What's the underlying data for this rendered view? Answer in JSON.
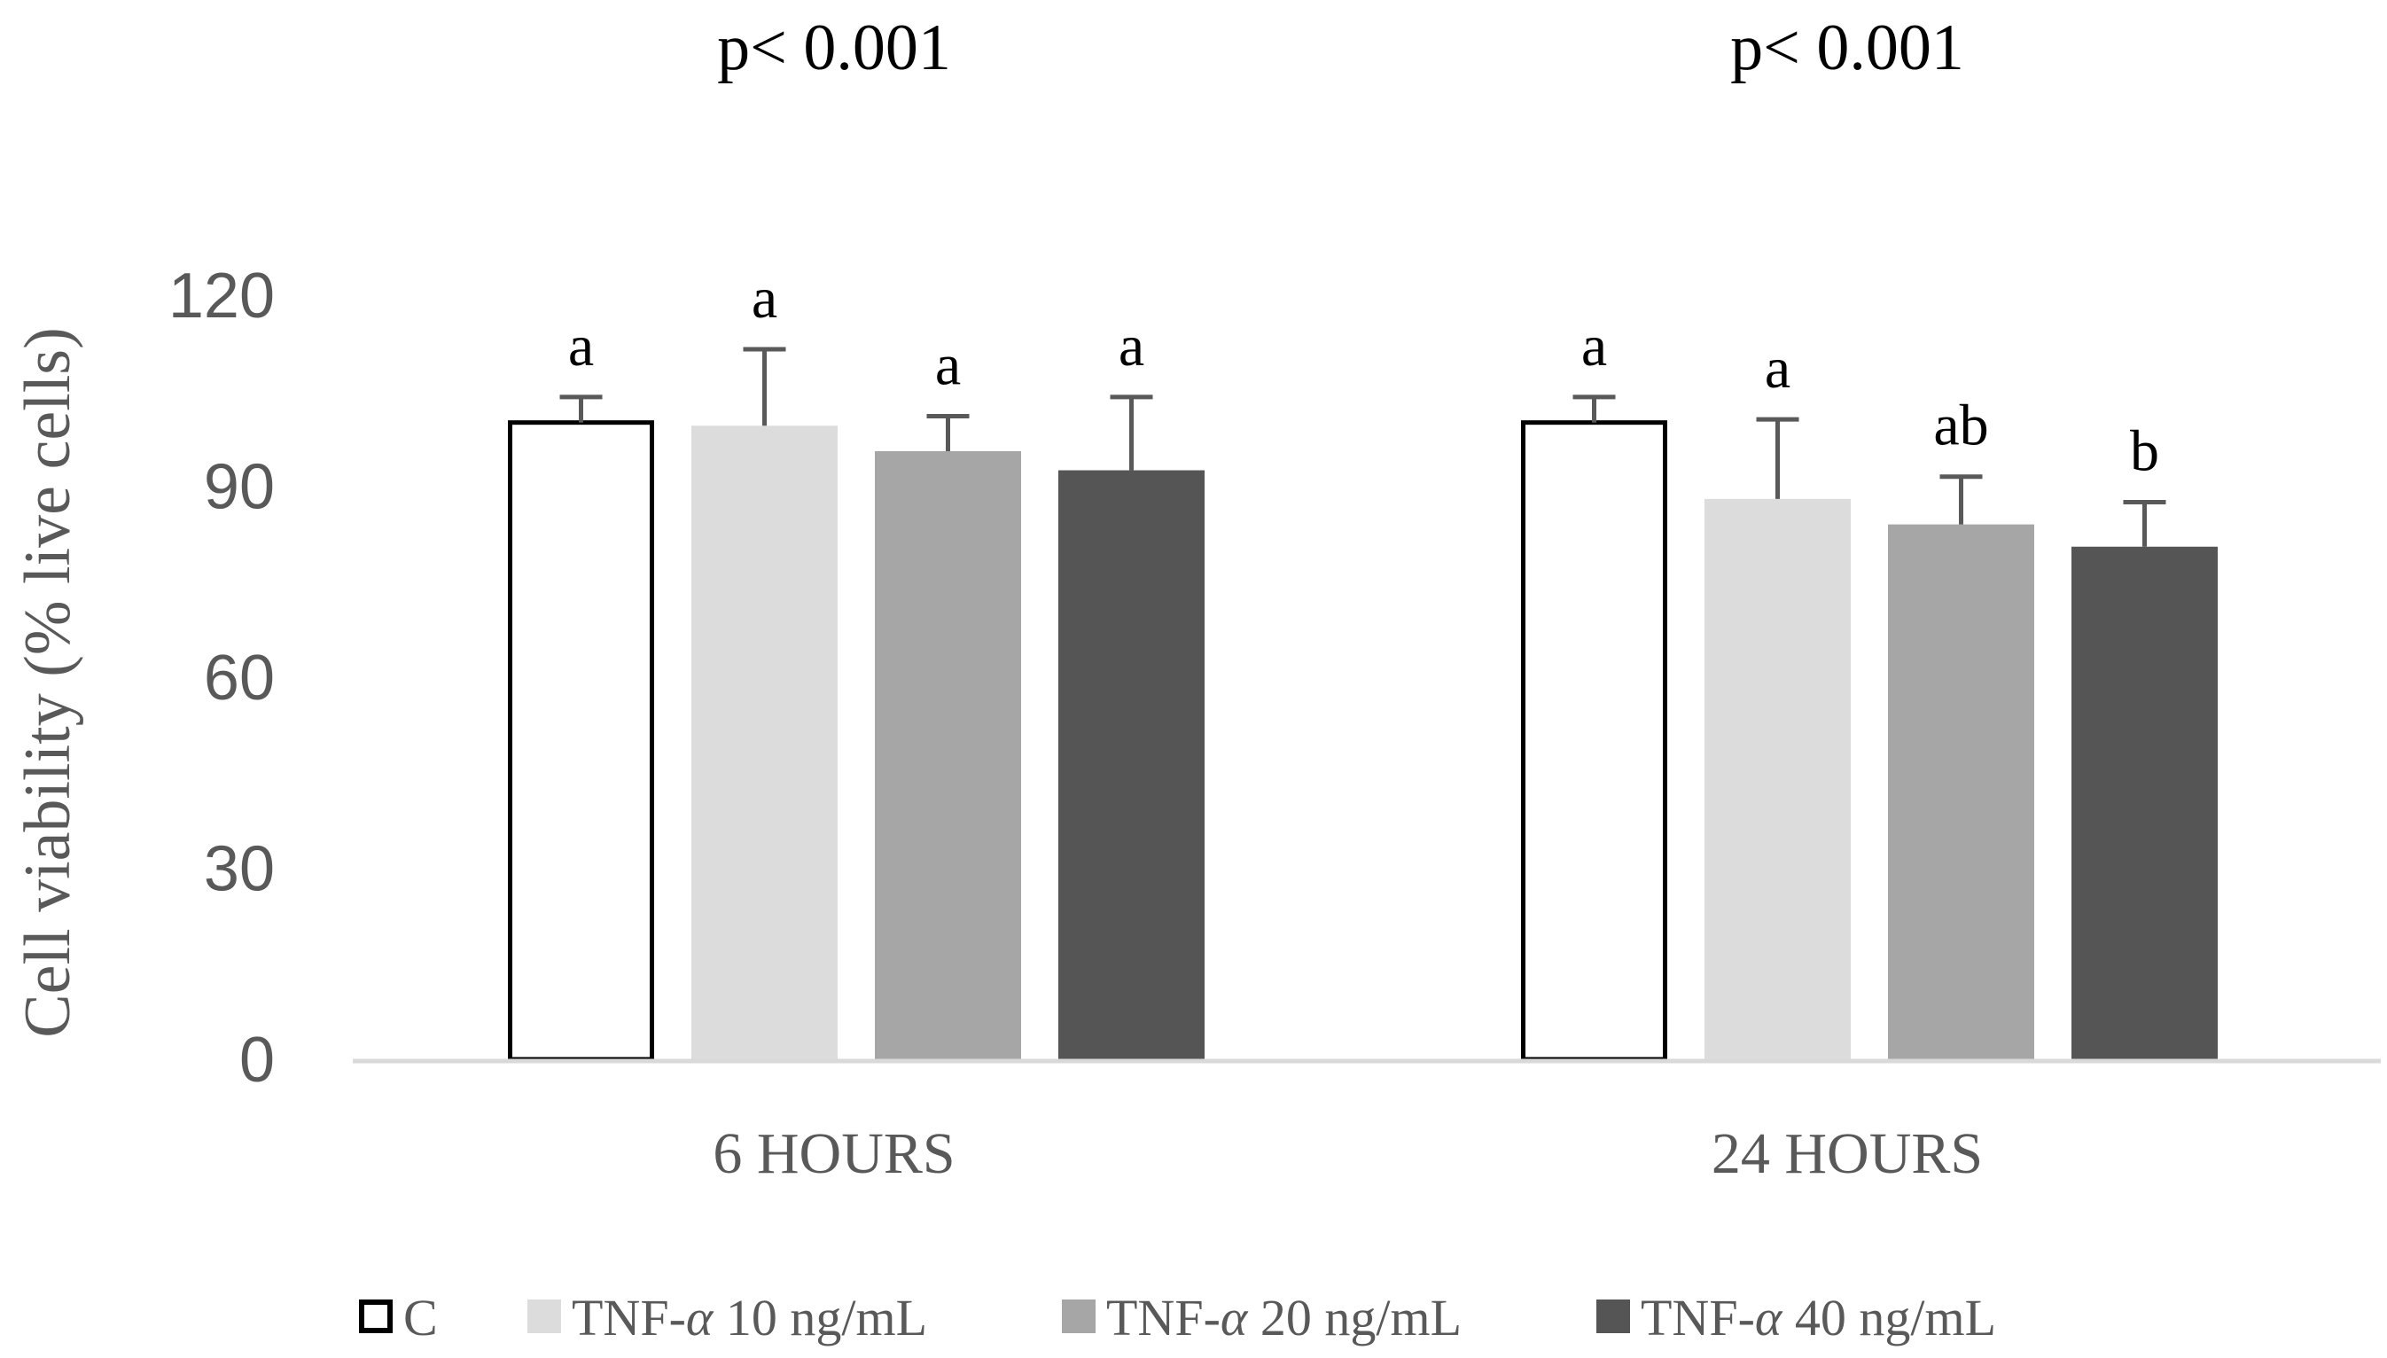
{
  "chart_data": {
    "type": "bar",
    "ylabel": "Cell viability (% live cells)",
    "ylim": [
      0,
      120
    ],
    "yticks": [
      0,
      30,
      60,
      90,
      120
    ],
    "ytick_labels": [
      "0",
      "30",
      "60",
      "90",
      "120"
    ],
    "categories": [
      "6 HOURS",
      "24 HOURS"
    ],
    "group_annotations": [
      "p< 0.001",
      "p< 0.001"
    ],
    "legend_position": "bottom",
    "series": [
      {
        "name": "C",
        "legend_label": "C",
        "values": [
          100,
          100
        ],
        "errors": [
          4,
          4
        ],
        "letters": [
          "a",
          "a"
        ],
        "fill": "#ffffff",
        "stroke": "#000000"
      },
      {
        "name": "TNF-α 10 ng/mL",
        "legend_prefix": "TNF-",
        "legend_greek": "α",
        "legend_suffix": " 10 ng/mL",
        "values": [
          99.5,
          88
        ],
        "errors": [
          12,
          12.5
        ],
        "letters": [
          "a",
          "a"
        ],
        "fill": "#dcdcdc",
        "stroke": "none"
      },
      {
        "name": "TNF-α 20 ng/mL",
        "legend_prefix": "TNF-",
        "legend_greek": "α",
        "legend_suffix": " 20 ng/mL",
        "values": [
          95.5,
          84
        ],
        "errors": [
          5.5,
          7.5
        ],
        "letters": [
          "a",
          "ab"
        ],
        "fill": "#a6a6a6",
        "stroke": "none"
      },
      {
        "name": "TNF-α 40 ng/mL",
        "legend_prefix": "TNF-",
        "legend_greek": "α",
        "legend_suffix": " 40 ng/mL",
        "values": [
          92.5,
          80.5
        ],
        "errors": [
          11.5,
          7
        ],
        "letters": [
          "a",
          "b"
        ],
        "fill": "#555555",
        "stroke": "none"
      }
    ],
    "colors": {
      "axis": "#d9d9d9",
      "tick_text": "#595959",
      "error_bar": "#595959",
      "text": "#000000"
    }
  }
}
